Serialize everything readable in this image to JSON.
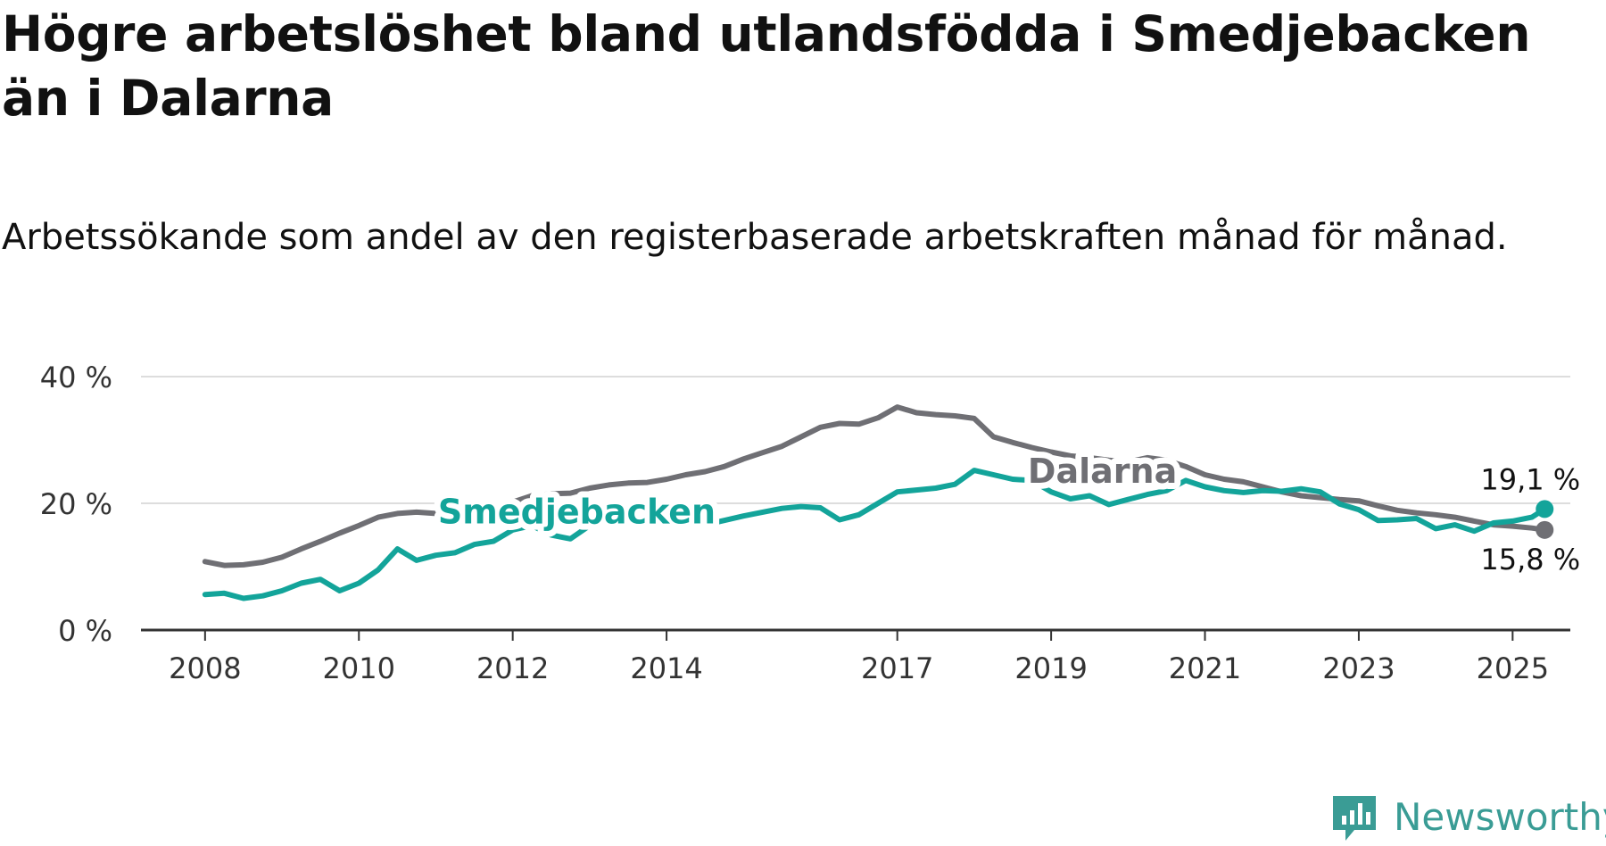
{
  "title": "Högre arbetslöshet bland utlandsfödda i Smedjebacken än i Dalarna",
  "subtitle": "Arbetssökande som andel av den registerbaserade arbetskraften månad för månad.",
  "brand": {
    "name": "Newsworthy",
    "color": "#3a9c95"
  },
  "colors": {
    "smedjebacken": "#13a49a",
    "dalarna": "#6f6f74",
    "grid": "#dddddd",
    "axis": "#333333"
  },
  "chart_data": {
    "type": "line",
    "title": "Högre arbetslöshet bland utlandsfödda i Smedjebacken än i Dalarna",
    "subtitle": "Arbetssökande som andel av den registerbaserade arbetskraften månad för månad.",
    "xlabel": "",
    "ylabel": "",
    "x_ticks": [
      "2008",
      "2010",
      "2012",
      "2014",
      "2017",
      "2019",
      "2021",
      "2023",
      "2025"
    ],
    "y_ticks": [
      "0 %",
      "20 %",
      "40 %"
    ],
    "ylim": [
      0,
      40
    ],
    "xlim": [
      "2007-03",
      "2025-10"
    ],
    "grid": true,
    "legend": "inline labels",
    "series": [
      {
        "name": "Dalarna",
        "key": "dalarna",
        "end_label": "15,8 %",
        "points": [
          [
            "2008-01",
            10.8
          ],
          [
            "2008-04",
            10.2
          ],
          [
            "2008-07",
            10.3
          ],
          [
            "2008-10",
            10.7
          ],
          [
            "2009-01",
            11.5
          ],
          [
            "2009-04",
            12.8
          ],
          [
            "2009-07",
            14.0
          ],
          [
            "2009-10",
            15.3
          ],
          [
            "2010-01",
            16.5
          ],
          [
            "2010-04",
            17.8
          ],
          [
            "2010-07",
            18.4
          ],
          [
            "2010-10",
            18.6
          ],
          [
            "2011-01",
            18.4
          ],
          [
            "2011-04",
            18.5
          ],
          [
            "2011-07",
            19.2
          ],
          [
            "2011-10",
            19.5
          ],
          [
            "2012-01",
            20.2
          ],
          [
            "2012-04",
            21.2
          ],
          [
            "2012-07",
            21.5
          ],
          [
            "2012-10",
            21.6
          ],
          [
            "2013-01",
            22.4
          ],
          [
            "2013-04",
            22.9
          ],
          [
            "2013-07",
            23.2
          ],
          [
            "2013-10",
            23.3
          ],
          [
            "2014-01",
            23.8
          ],
          [
            "2014-04",
            24.5
          ],
          [
            "2014-07",
            25.0
          ],
          [
            "2014-10",
            25.8
          ],
          [
            "2015-01",
            27.0
          ],
          [
            "2015-04",
            28.0
          ],
          [
            "2015-07",
            29.0
          ],
          [
            "2015-10",
            30.5
          ],
          [
            "2016-01",
            32.0
          ],
          [
            "2016-04",
            32.6
          ],
          [
            "2016-07",
            32.5
          ],
          [
            "2016-10",
            33.5
          ],
          [
            "2017-01",
            35.2
          ],
          [
            "2017-04",
            34.3
          ],
          [
            "2017-07",
            34.0
          ],
          [
            "2017-10",
            33.8
          ],
          [
            "2018-01",
            33.4
          ],
          [
            "2018-04",
            30.5
          ],
          [
            "2018-07",
            29.6
          ],
          [
            "2018-10",
            28.8
          ],
          [
            "2019-01",
            28.1
          ],
          [
            "2019-04",
            27.5
          ],
          [
            "2019-07",
            27.2
          ],
          [
            "2019-10",
            26.8
          ],
          [
            "2020-01",
            26.5
          ],
          [
            "2020-04",
            27.2
          ],
          [
            "2020-07",
            26.8
          ],
          [
            "2020-10",
            25.8
          ],
          [
            "2021-01",
            24.5
          ],
          [
            "2021-04",
            23.8
          ],
          [
            "2021-07",
            23.4
          ],
          [
            "2021-10",
            22.6
          ],
          [
            "2022-01",
            21.8
          ],
          [
            "2022-04",
            21.2
          ],
          [
            "2022-07",
            20.9
          ],
          [
            "2022-10",
            20.6
          ],
          [
            "2023-01",
            20.4
          ],
          [
            "2023-04",
            19.6
          ],
          [
            "2023-07",
            18.9
          ],
          [
            "2023-10",
            18.5
          ],
          [
            "2024-01",
            18.2
          ],
          [
            "2024-04",
            17.8
          ],
          [
            "2024-07",
            17.2
          ],
          [
            "2024-10",
            16.6
          ],
          [
            "2025-01",
            16.4
          ],
          [
            "2025-04",
            16.1
          ],
          [
            "2025-06",
            15.8
          ]
        ]
      },
      {
        "name": "Smedjebacken",
        "key": "smedjebacken",
        "end_label": "19,1 %",
        "points": [
          [
            "2008-01",
            5.6
          ],
          [
            "2008-04",
            5.8
          ],
          [
            "2008-07",
            5.0
          ],
          [
            "2008-10",
            5.4
          ],
          [
            "2009-01",
            6.2
          ],
          [
            "2009-04",
            7.4
          ],
          [
            "2009-07",
            8.0
          ],
          [
            "2009-10",
            6.2
          ],
          [
            "2010-01",
            7.4
          ],
          [
            "2010-04",
            9.5
          ],
          [
            "2010-07",
            12.8
          ],
          [
            "2010-10",
            11.0
          ],
          [
            "2011-01",
            11.8
          ],
          [
            "2011-04",
            12.2
          ],
          [
            "2011-07",
            13.5
          ],
          [
            "2011-10",
            14.0
          ],
          [
            "2012-01",
            15.8
          ],
          [
            "2012-04",
            16.5
          ],
          [
            "2012-07",
            15.0
          ],
          [
            "2012-10",
            14.4
          ],
          [
            "2013-01",
            16.5
          ],
          [
            "2013-04",
            17.0
          ],
          [
            "2013-07",
            17.3
          ],
          [
            "2013-10",
            17.2
          ],
          [
            "2014-01",
            17.4
          ],
          [
            "2014-04",
            17.1
          ],
          [
            "2014-07",
            16.6
          ],
          [
            "2014-10",
            17.3
          ],
          [
            "2015-01",
            18.0
          ],
          [
            "2015-04",
            18.6
          ],
          [
            "2015-07",
            19.2
          ],
          [
            "2015-10",
            19.5
          ],
          [
            "2016-01",
            19.3
          ],
          [
            "2016-04",
            17.4
          ],
          [
            "2016-07",
            18.2
          ],
          [
            "2016-10",
            20.0
          ],
          [
            "2017-01",
            21.8
          ],
          [
            "2017-04",
            22.1
          ],
          [
            "2017-07",
            22.4
          ],
          [
            "2017-10",
            23.0
          ],
          [
            "2018-01",
            25.2
          ],
          [
            "2018-04",
            24.5
          ],
          [
            "2018-07",
            23.8
          ],
          [
            "2018-10",
            23.6
          ],
          [
            "2019-01",
            21.8
          ],
          [
            "2019-04",
            20.7
          ],
          [
            "2019-07",
            21.2
          ],
          [
            "2019-10",
            19.8
          ],
          [
            "2020-01",
            20.6
          ],
          [
            "2020-04",
            21.4
          ],
          [
            "2020-07",
            22.0
          ],
          [
            "2020-10",
            23.6
          ],
          [
            "2021-01",
            22.6
          ],
          [
            "2021-04",
            22.0
          ],
          [
            "2021-07",
            21.7
          ],
          [
            "2021-10",
            22.0
          ],
          [
            "2022-01",
            21.9
          ],
          [
            "2022-04",
            22.3
          ],
          [
            "2022-07",
            21.8
          ],
          [
            "2022-10",
            19.9
          ],
          [
            "2023-01",
            19.0
          ],
          [
            "2023-04",
            17.3
          ],
          [
            "2023-07",
            17.4
          ],
          [
            "2023-10",
            17.6
          ],
          [
            "2024-01",
            16.0
          ],
          [
            "2024-04",
            16.6
          ],
          [
            "2024-07",
            15.6
          ],
          [
            "2024-10",
            16.9
          ],
          [
            "2025-01",
            17.2
          ],
          [
            "2025-04",
            17.8
          ],
          [
            "2025-06",
            19.1
          ]
        ]
      }
    ]
  }
}
